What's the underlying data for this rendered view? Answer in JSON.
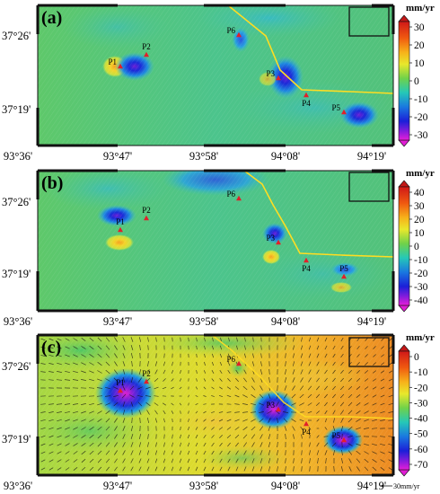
{
  "panels": [
    {
      "id": "a",
      "label": "(a)",
      "unit": "mm/yr",
      "colorbar": {
        "max": 30,
        "min": -30,
        "ticks": [
          "30",
          "20",
          "10",
          "0",
          "-10",
          "-20",
          "-30"
        ]
      },
      "y_ticks": [
        "37°26'",
        "37°19'"
      ],
      "points": [
        {
          "label": "P1"
        },
        {
          "label": "P2"
        },
        {
          "label": "P6"
        },
        {
          "label": "P3"
        },
        {
          "label": "P4"
        },
        {
          "label": "P5"
        }
      ]
    },
    {
      "id": "b",
      "label": "(b)",
      "unit": "mm/yr",
      "colorbar": {
        "max": 40,
        "min": -40,
        "ticks": [
          "40",
          "30",
          "20",
          "10",
          "0",
          "-10",
          "-20",
          "-30",
          "-40"
        ]
      },
      "y_ticks": [
        "37°26'",
        "37°19'"
      ],
      "points": [
        {
          "label": "P1"
        },
        {
          "label": "P2"
        },
        {
          "label": "P6"
        },
        {
          "label": "P3"
        },
        {
          "label": "P4"
        },
        {
          "label": "P5"
        }
      ]
    },
    {
      "id": "c",
      "label": "(c)",
      "unit": "mm/yr",
      "colorbar": {
        "max": 0,
        "min": -70,
        "ticks": [
          "0",
          "-10",
          "-20",
          "-30",
          "-40",
          "-50",
          "-60",
          "-70"
        ]
      },
      "y_ticks": [
        "37°26'",
        "37°19'"
      ],
      "points": [
        {
          "label": "P1"
        },
        {
          "label": "P2"
        },
        {
          "label": "P6"
        },
        {
          "label": "P3"
        },
        {
          "label": "P4"
        },
        {
          "label": "P5"
        }
      ],
      "scale_arrow": "30mm/yr"
    }
  ],
  "x_ticks": [
    "93°36'",
    "93°47'",
    "93°58'",
    "94°08'",
    "94°19'"
  ],
  "colors": {
    "fault": "#ffdd22",
    "point_marker": "#e0202a",
    "frame": "#111111"
  }
}
